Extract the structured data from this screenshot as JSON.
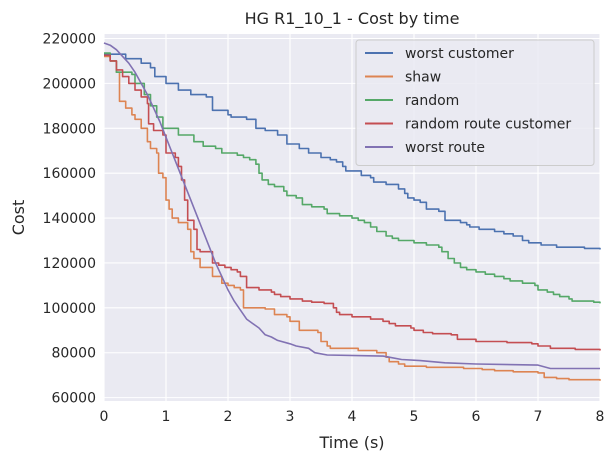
{
  "chart_data": {
    "type": "line",
    "title": "HG R1_10_1 - Cost by time",
    "xlabel": "Time (s)",
    "ylabel": "Cost",
    "xlim": [
      0,
      8
    ],
    "ylim": [
      58500,
      222000
    ],
    "xticks": [
      0,
      1,
      2,
      3,
      4,
      5,
      6,
      7,
      8
    ],
    "yticks": [
      60000,
      80000,
      100000,
      120000,
      140000,
      160000,
      180000,
      200000,
      220000
    ],
    "grid": true,
    "legend_position": "top-right",
    "series": [
      {
        "name": "worst customer",
        "color": "#4c72b0",
        "step": true,
        "points": [
          [
            0,
            213000
          ],
          [
            0.35,
            211000
          ],
          [
            0.6,
            209000
          ],
          [
            0.75,
            207000
          ],
          [
            0.82,
            203000
          ],
          [
            1.0,
            200000
          ],
          [
            1.2,
            197000
          ],
          [
            1.4,
            195000
          ],
          [
            1.65,
            194000
          ],
          [
            1.75,
            188000
          ],
          [
            2.0,
            186000
          ],
          [
            2.05,
            185000
          ],
          [
            2.3,
            184000
          ],
          [
            2.45,
            180000
          ],
          [
            2.6,
            179000
          ],
          [
            2.8,
            177000
          ],
          [
            2.95,
            173000
          ],
          [
            3.15,
            171000
          ],
          [
            3.3,
            169000
          ],
          [
            3.5,
            167000
          ],
          [
            3.65,
            166000
          ],
          [
            3.75,
            165000
          ],
          [
            3.85,
            163000
          ],
          [
            3.9,
            161000
          ],
          [
            4.15,
            159000
          ],
          [
            4.3,
            158000
          ],
          [
            4.35,
            156000
          ],
          [
            4.55,
            155000
          ],
          [
            4.75,
            153000
          ],
          [
            4.85,
            151000
          ],
          [
            4.9,
            149000
          ],
          [
            5.0,
            148000
          ],
          [
            5.1,
            147000
          ],
          [
            5.2,
            144000
          ],
          [
            5.4,
            143000
          ],
          [
            5.5,
            139000
          ],
          [
            5.75,
            138000
          ],
          [
            5.85,
            137000
          ],
          [
            5.9,
            136000
          ],
          [
            6.05,
            135000
          ],
          [
            6.3,
            134000
          ],
          [
            6.45,
            133000
          ],
          [
            6.6,
            132000
          ],
          [
            6.75,
            130000
          ],
          [
            6.85,
            129000
          ],
          [
            7.05,
            128000
          ],
          [
            7.3,
            127000
          ],
          [
            7.75,
            126500
          ],
          [
            8.0,
            126000
          ]
        ]
      },
      {
        "name": "shaw",
        "color": "#dd8452",
        "step": true,
        "points": [
          [
            0,
            212000
          ],
          [
            0.1,
            210000
          ],
          [
            0.2,
            205000
          ],
          [
            0.25,
            192000
          ],
          [
            0.35,
            189000
          ],
          [
            0.45,
            186000
          ],
          [
            0.5,
            184000
          ],
          [
            0.6,
            180000
          ],
          [
            0.7,
            174000
          ],
          [
            0.75,
            171000
          ],
          [
            0.85,
            169000
          ],
          [
            0.88,
            160000
          ],
          [
            0.95,
            158000
          ],
          [
            1.0,
            148000
          ],
          [
            1.05,
            144000
          ],
          [
            1.1,
            140000
          ],
          [
            1.2,
            138000
          ],
          [
            1.35,
            135000
          ],
          [
            1.4,
            125000
          ],
          [
            1.45,
            122000
          ],
          [
            1.55,
            118000
          ],
          [
            1.75,
            114000
          ],
          [
            1.9,
            111000
          ],
          [
            2.0,
            110000
          ],
          [
            2.1,
            109000
          ],
          [
            2.2,
            108000
          ],
          [
            2.25,
            100000
          ],
          [
            2.6,
            99500
          ],
          [
            2.75,
            97000
          ],
          [
            2.95,
            96000
          ],
          [
            3.0,
            94000
          ],
          [
            3.15,
            90000
          ],
          [
            3.45,
            89000
          ],
          [
            3.5,
            85000
          ],
          [
            3.6,
            83000
          ],
          [
            3.65,
            82000
          ],
          [
            4.1,
            81000
          ],
          [
            4.4,
            80000
          ],
          [
            4.55,
            78000
          ],
          [
            4.6,
            76000
          ],
          [
            4.75,
            75000
          ],
          [
            4.85,
            74000
          ],
          [
            5.2,
            73500
          ],
          [
            5.8,
            73000
          ],
          [
            6.1,
            72500
          ],
          [
            6.3,
            72000
          ],
          [
            6.6,
            71500
          ],
          [
            7.0,
            71000
          ],
          [
            7.1,
            69000
          ],
          [
            7.3,
            68500
          ],
          [
            7.5,
            68000
          ],
          [
            8.0,
            67500
          ]
        ]
      },
      {
        "name": "random",
        "color": "#55a868",
        "step": true,
        "points": [
          [
            0,
            213500
          ],
          [
            0.1,
            210000
          ],
          [
            0.2,
            205000
          ],
          [
            0.45,
            204000
          ],
          [
            0.5,
            200000
          ],
          [
            0.65,
            195000
          ],
          [
            0.75,
            190000
          ],
          [
            0.85,
            185000
          ],
          [
            0.95,
            180000
          ],
          [
            1.2,
            177000
          ],
          [
            1.45,
            174000
          ],
          [
            1.6,
            172000
          ],
          [
            1.8,
            171000
          ],
          [
            1.9,
            169000
          ],
          [
            2.15,
            168000
          ],
          [
            2.25,
            167000
          ],
          [
            2.35,
            166000
          ],
          [
            2.45,
            164000
          ],
          [
            2.5,
            160000
          ],
          [
            2.55,
            157000
          ],
          [
            2.65,
            155000
          ],
          [
            2.75,
            154000
          ],
          [
            2.9,
            152000
          ],
          [
            2.95,
            150000
          ],
          [
            3.1,
            149000
          ],
          [
            3.2,
            146000
          ],
          [
            3.35,
            145000
          ],
          [
            3.55,
            144000
          ],
          [
            3.6,
            142000
          ],
          [
            3.8,
            141000
          ],
          [
            4.0,
            140000
          ],
          [
            4.1,
            139000
          ],
          [
            4.2,
            138000
          ],
          [
            4.3,
            136000
          ],
          [
            4.4,
            134000
          ],
          [
            4.55,
            132000
          ],
          [
            4.65,
            131000
          ],
          [
            4.75,
            130000
          ],
          [
            5.0,
            129000
          ],
          [
            5.2,
            128000
          ],
          [
            5.4,
            127000
          ],
          [
            5.45,
            125000
          ],
          [
            5.55,
            122000
          ],
          [
            5.65,
            120000
          ],
          [
            5.75,
            118000
          ],
          [
            5.85,
            117000
          ],
          [
            6.0,
            116000
          ],
          [
            6.15,
            115000
          ],
          [
            6.3,
            114000
          ],
          [
            6.45,
            113000
          ],
          [
            6.55,
            112000
          ],
          [
            6.75,
            111000
          ],
          [
            6.95,
            110000
          ],
          [
            7.0,
            108000
          ],
          [
            7.15,
            107000
          ],
          [
            7.25,
            106000
          ],
          [
            7.35,
            105000
          ],
          [
            7.5,
            104000
          ],
          [
            7.55,
            103000
          ],
          [
            7.9,
            102500
          ],
          [
            8.0,
            102000
          ]
        ]
      },
      {
        "name": "random route customer",
        "color": "#c44e52",
        "step": true,
        "points": [
          [
            0,
            212500
          ],
          [
            0.1,
            210000
          ],
          [
            0.2,
            206000
          ],
          [
            0.3,
            203000
          ],
          [
            0.4,
            200000
          ],
          [
            0.5,
            197000
          ],
          [
            0.6,
            194000
          ],
          [
            0.7,
            191000
          ],
          [
            0.72,
            182000
          ],
          [
            0.8,
            179000
          ],
          [
            0.95,
            177000
          ],
          [
            1.0,
            169000
          ],
          [
            1.15,
            167000
          ],
          [
            1.2,
            163000
          ],
          [
            1.25,
            157000
          ],
          [
            1.3,
            148000
          ],
          [
            1.35,
            139000
          ],
          [
            1.45,
            135000
          ],
          [
            1.5,
            126000
          ],
          [
            1.55,
            125000
          ],
          [
            1.75,
            120000
          ],
          [
            1.85,
            119000
          ],
          [
            1.95,
            118000
          ],
          [
            2.05,
            117000
          ],
          [
            2.15,
            116000
          ],
          [
            2.2,
            114000
          ],
          [
            2.3,
            109000
          ],
          [
            2.5,
            108000
          ],
          [
            2.7,
            107000
          ],
          [
            2.75,
            106000
          ],
          [
            2.85,
            105000
          ],
          [
            3.0,
            104000
          ],
          [
            3.2,
            103000
          ],
          [
            3.35,
            102500
          ],
          [
            3.55,
            102000
          ],
          [
            3.7,
            100000
          ],
          [
            3.75,
            98000
          ],
          [
            3.8,
            97000
          ],
          [
            4.0,
            96000
          ],
          [
            4.3,
            95000
          ],
          [
            4.5,
            94000
          ],
          [
            4.6,
            93000
          ],
          [
            4.7,
            92000
          ],
          [
            4.95,
            91000
          ],
          [
            5.0,
            90000
          ],
          [
            5.15,
            89000
          ],
          [
            5.3,
            88500
          ],
          [
            5.6,
            88000
          ],
          [
            5.7,
            86000
          ],
          [
            6.0,
            85000
          ],
          [
            6.5,
            84500
          ],
          [
            6.9,
            84000
          ],
          [
            7.0,
            83000
          ],
          [
            7.2,
            82000
          ],
          [
            7.6,
            81500
          ],
          [
            8.0,
            81000
          ]
        ]
      },
      {
        "name": "worst route",
        "color": "#8172b3",
        "step": false,
        "points": [
          [
            0,
            218000
          ],
          [
            0.1,
            217000
          ],
          [
            0.2,
            215000
          ],
          [
            0.3,
            212000
          ],
          [
            0.4,
            209000
          ],
          [
            0.5,
            205000
          ],
          [
            0.6,
            200000
          ],
          [
            0.7,
            195000
          ],
          [
            0.8,
            189000
          ],
          [
            0.9,
            183000
          ],
          [
            1.0,
            176000
          ],
          [
            1.1,
            169000
          ],
          [
            1.2,
            162000
          ],
          [
            1.3,
            155000
          ],
          [
            1.4,
            148000
          ],
          [
            1.5,
            141000
          ],
          [
            1.6,
            134000
          ],
          [
            1.7,
            127000
          ],
          [
            1.8,
            120000
          ],
          [
            1.9,
            114000
          ],
          [
            2.0,
            108000
          ],
          [
            2.1,
            103000
          ],
          [
            2.2,
            99000
          ],
          [
            2.3,
            95000
          ],
          [
            2.4,
            93000
          ],
          [
            2.5,
            91000
          ],
          [
            2.6,
            88000
          ],
          [
            2.7,
            87000
          ],
          [
            2.8,
            85500
          ],
          [
            3.0,
            84000
          ],
          [
            3.1,
            83000
          ],
          [
            3.3,
            82000
          ],
          [
            3.4,
            80000
          ],
          [
            3.6,
            79000
          ],
          [
            4.5,
            78500
          ],
          [
            4.6,
            78000
          ],
          [
            4.8,
            77000
          ],
          [
            5.1,
            76500
          ],
          [
            5.5,
            75500
          ],
          [
            6.0,
            75000
          ],
          [
            7.0,
            74500
          ],
          [
            7.2,
            73000
          ],
          [
            8.0,
            73000
          ]
        ]
      }
    ]
  }
}
